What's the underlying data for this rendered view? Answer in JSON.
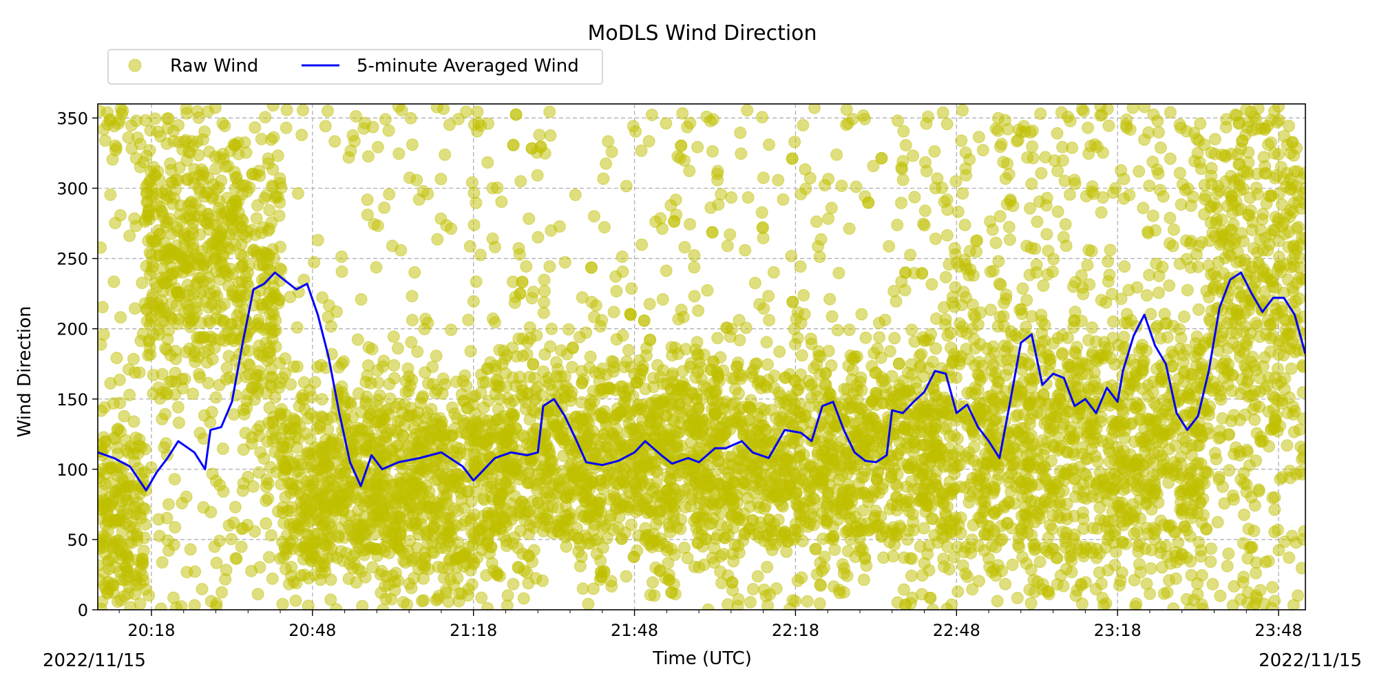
{
  "chart_data": {
    "type": "scatter",
    "title": "MoDLS Wind Direction",
    "xlabel": "Time (UTC)",
    "ylabel": "Wind Direction",
    "x_range": [
      "20:08",
      "23:53"
    ],
    "ylim": [
      0,
      360
    ],
    "grid": true,
    "grid_style": "dashed",
    "legend_position": "top-left (above plot)",
    "x_ticks": [
      "20:18",
      "20:48",
      "21:18",
      "21:48",
      "22:18",
      "22:48",
      "23:18",
      "23:48"
    ],
    "y_ticks": [
      0,
      50,
      100,
      150,
      200,
      250,
      300,
      350
    ],
    "date_left": "2022/11/15",
    "date_right": "2022/11/15",
    "colors": {
      "raw": "#bfbf00",
      "avg": "#0000ff",
      "grid": "#b0b0b0"
    },
    "series": [
      {
        "name": "Raw Wind",
        "kind": "scatter",
        "color": "#bfbf00",
        "marker": "circle",
        "opacity": 0.5,
        "regimes": [
          {
            "from": "20:08",
            "to": "20:17",
            "center": 60,
            "spread": 60,
            "outlier_share": 0.3
          },
          {
            "from": "20:17",
            "to": "20:35",
            "center": 250,
            "spread": 70,
            "outlier_share": 0.25
          },
          {
            "from": "20:35",
            "to": "20:42",
            "center": 210,
            "spread": 90,
            "outlier_share": 0.25
          },
          {
            "from": "20:42",
            "to": "21:22",
            "center": 90,
            "spread": 60,
            "outlier_share": 0.18
          },
          {
            "from": "21:22",
            "to": "22:45",
            "center": 110,
            "spread": 60,
            "outlier_share": 0.2
          },
          {
            "from": "22:45",
            "to": "23:35",
            "center": 120,
            "spread": 70,
            "outlier_share": 0.4
          },
          {
            "from": "23:35",
            "to": "23:53",
            "center": 240,
            "spread": 110,
            "outlier_share": 0.35
          }
        ]
      },
      {
        "name": "5-minute Averaged Wind",
        "kind": "line",
        "color": "#0000ff",
        "points": [
          [
            "20:08",
            112
          ],
          [
            "20:11",
            108
          ],
          [
            "20:14",
            102
          ],
          [
            "20:17",
            85
          ],
          [
            "20:19",
            98
          ],
          [
            "20:21",
            108
          ],
          [
            "20:23",
            120
          ],
          [
            "20:26",
            112
          ],
          [
            "20:28",
            100
          ],
          [
            "20:29",
            128
          ],
          [
            "20:31",
            130
          ],
          [
            "20:33",
            148
          ],
          [
            "20:35",
            190
          ],
          [
            "20:37",
            228
          ],
          [
            "20:39",
            232
          ],
          [
            "20:41",
            240
          ],
          [
            "20:43",
            234
          ],
          [
            "20:45",
            228
          ],
          [
            "20:47",
            232
          ],
          [
            "20:49",
            210
          ],
          [
            "20:51",
            180
          ],
          [
            "20:53",
            140
          ],
          [
            "20:55",
            105
          ],
          [
            "20:57",
            88
          ],
          [
            "20:59",
            110
          ],
          [
            "21:01",
            100
          ],
          [
            "21:04",
            105
          ],
          [
            "21:08",
            108
          ],
          [
            "21:12",
            112
          ],
          [
            "21:16",
            102
          ],
          [
            "21:18",
            92
          ],
          [
            "21:20",
            100
          ],
          [
            "21:22",
            108
          ],
          [
            "21:25",
            112
          ],
          [
            "21:28",
            110
          ],
          [
            "21:30",
            112
          ],
          [
            "21:31",
            145
          ],
          [
            "21:33",
            150
          ],
          [
            "21:35",
            138
          ],
          [
            "21:37",
            122
          ],
          [
            "21:39",
            105
          ],
          [
            "21:42",
            103
          ],
          [
            "21:45",
            106
          ],
          [
            "21:48",
            112
          ],
          [
            "21:50",
            120
          ],
          [
            "21:53",
            110
          ],
          [
            "21:55",
            104
          ],
          [
            "21:58",
            108
          ],
          [
            "22:00",
            105
          ],
          [
            "22:03",
            115
          ],
          [
            "22:05",
            115
          ],
          [
            "22:08",
            120
          ],
          [
            "22:10",
            112
          ],
          [
            "22:13",
            108
          ],
          [
            "22:16",
            128
          ],
          [
            "22:19",
            126
          ],
          [
            "22:21",
            120
          ],
          [
            "22:23",
            145
          ],
          [
            "22:25",
            148
          ],
          [
            "22:27",
            128
          ],
          [
            "22:29",
            112
          ],
          [
            "22:31",
            106
          ],
          [
            "22:33",
            105
          ],
          [
            "22:35",
            110
          ],
          [
            "22:36",
            142
          ],
          [
            "22:38",
            140
          ],
          [
            "22:40",
            148
          ],
          [
            "22:42",
            155
          ],
          [
            "22:44",
            170
          ],
          [
            "22:46",
            168
          ],
          [
            "22:48",
            140
          ],
          [
            "22:50",
            146
          ],
          [
            "22:52",
            130
          ],
          [
            "22:54",
            120
          ],
          [
            "22:56",
            108
          ],
          [
            "22:58",
            148
          ],
          [
            "23:00",
            190
          ],
          [
            "23:02",
            196
          ],
          [
            "23:04",
            160
          ],
          [
            "23:06",
            168
          ],
          [
            "23:08",
            165
          ],
          [
            "23:10",
            145
          ],
          [
            "23:12",
            150
          ],
          [
            "23:14",
            140
          ],
          [
            "23:16",
            158
          ],
          [
            "23:18",
            148
          ],
          [
            "23:19",
            170
          ],
          [
            "23:21",
            195
          ],
          [
            "23:23",
            210
          ],
          [
            "23:25",
            188
          ],
          [
            "23:27",
            175
          ],
          [
            "23:29",
            140
          ],
          [
            "23:31",
            128
          ],
          [
            "23:33",
            138
          ],
          [
            "23:35",
            170
          ],
          [
            "23:37",
            215
          ],
          [
            "23:39",
            235
          ],
          [
            "23:41",
            240
          ],
          [
            "23:43",
            225
          ],
          [
            "23:45",
            212
          ],
          [
            "23:47",
            222
          ],
          [
            "23:49",
            222
          ],
          [
            "23:51",
            210
          ],
          [
            "23:53",
            182
          ]
        ]
      }
    ]
  }
}
